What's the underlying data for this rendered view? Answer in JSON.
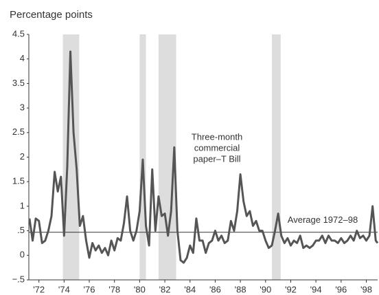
{
  "chart_data": {
    "type": "line",
    "title": "Percentage points",
    "x": [
      1971.25,
      1971.5,
      1971.75,
      1972.0,
      1972.25,
      1972.5,
      1972.75,
      1973.0,
      1973.25,
      1973.5,
      1973.75,
      1974.0,
      1974.25,
      1974.5,
      1974.75,
      1975.0,
      1975.25,
      1975.5,
      1975.75,
      1976.0,
      1976.25,
      1976.5,
      1976.75,
      1977.0,
      1977.25,
      1977.5,
      1977.75,
      1978.0,
      1978.25,
      1978.5,
      1978.75,
      1979.0,
      1979.25,
      1979.5,
      1979.75,
      1980.0,
      1980.25,
      1980.5,
      1980.75,
      1981.0,
      1981.25,
      1981.5,
      1981.75,
      1982.0,
      1982.25,
      1982.5,
      1982.75,
      1983.0,
      1983.25,
      1983.5,
      1983.75,
      1984.0,
      1984.25,
      1984.5,
      1984.75,
      1985.0,
      1985.25,
      1985.5,
      1985.75,
      1986.0,
      1986.25,
      1986.5,
      1986.75,
      1987.0,
      1987.25,
      1987.5,
      1987.75,
      1988.0,
      1988.25,
      1988.5,
      1988.75,
      1989.0,
      1989.25,
      1989.5,
      1989.75,
      1990.0,
      1990.25,
      1990.5,
      1990.75,
      1991.0,
      1991.25,
      1991.5,
      1991.75,
      1992.0,
      1992.25,
      1992.5,
      1992.75,
      1993.0,
      1993.25,
      1993.5,
      1993.75,
      1994.0,
      1994.25,
      1994.5,
      1994.75,
      1995.0,
      1995.25,
      1995.5,
      1995.75,
      1996.0,
      1996.25,
      1996.5,
      1996.75,
      1997.0,
      1997.25,
      1997.5,
      1997.75,
      1998.0,
      1998.25,
      1998.5,
      1998.75,
      1998.9
    ],
    "series": [
      {
        "name": "Three-month commercial paper–T Bill",
        "color": "#555555",
        "values": [
          0.75,
          0.3,
          0.75,
          0.7,
          0.25,
          0.3,
          0.5,
          0.8,
          1.7,
          1.3,
          1.6,
          0.4,
          1.8,
          4.15,
          2.5,
          1.75,
          0.6,
          0.8,
          0.3,
          -0.05,
          0.25,
          0.1,
          0.2,
          0.05,
          0.15,
          0.0,
          0.3,
          0.1,
          0.35,
          0.3,
          0.65,
          1.2,
          0.5,
          0.3,
          0.5,
          0.9,
          1.95,
          0.6,
          0.2,
          1.75,
          0.5,
          1.2,
          0.8,
          0.85,
          0.4,
          0.9,
          2.2,
          0.5,
          -0.1,
          -0.15,
          -0.05,
          0.2,
          0.05,
          0.75,
          0.3,
          0.3,
          0.05,
          0.25,
          0.3,
          0.5,
          0.3,
          0.4,
          0.25,
          0.3,
          0.7,
          0.5,
          0.9,
          1.65,
          1.1,
          0.8,
          0.9,
          0.6,
          0.7,
          0.5,
          0.5,
          0.3,
          0.15,
          0.2,
          0.5,
          0.85,
          0.4,
          0.25,
          0.35,
          0.2,
          0.3,
          0.25,
          0.4,
          0.15,
          0.2,
          0.15,
          0.2,
          0.3,
          0.3,
          0.4,
          0.25,
          0.4,
          0.3,
          0.3,
          0.25,
          0.35,
          0.25,
          0.3,
          0.4,
          0.3,
          0.5,
          0.35,
          0.4,
          0.3,
          0.4,
          1.0,
          0.3,
          0.25
        ]
      }
    ],
    "series_label": [
      "Three-month",
      "commercial",
      "paper–T Bill"
    ],
    "average": 0.47,
    "average_label": "Average 1972–98",
    "shaded_periods": [
      [
        1973.9,
        1975.2
      ],
      [
        1980.0,
        1980.5
      ],
      [
        1981.5,
        1982.9
      ],
      [
        1990.5,
        1991.2
      ]
    ],
    "shade_color": "#dddddd",
    "xlim": [
      1971.2,
      1998.9
    ],
    "xticks": [
      {
        "value": 1972,
        "label": "'72"
      },
      {
        "value": 1974,
        "label": "'74"
      },
      {
        "value": 1976,
        "label": "'76"
      },
      {
        "value": 1978,
        "label": "'78"
      },
      {
        "value": 1980,
        "label": "'80"
      },
      {
        "value": 1982,
        "label": "'82"
      },
      {
        "value": 1984,
        "label": "'84"
      },
      {
        "value": 1986,
        "label": "'86"
      },
      {
        "value": 1988,
        "label": "'88"
      },
      {
        "value": 1990,
        "label": "'90"
      },
      {
        "value": 1992,
        "label": "'92"
      },
      {
        "value": 1994,
        "label": "'94"
      },
      {
        "value": 1996,
        "label": "'96"
      },
      {
        "value": 1998,
        "label": "'98"
      }
    ],
    "ylim": [
      -0.5,
      4.5
    ],
    "yticks": [
      {
        "value": -0.5,
        "label": "−.5"
      },
      0,
      {
        "value": 0.5,
        "label": ".5"
      },
      1,
      1.5,
      2,
      2.5,
      3,
      3.5,
      4,
      4.5
    ]
  }
}
